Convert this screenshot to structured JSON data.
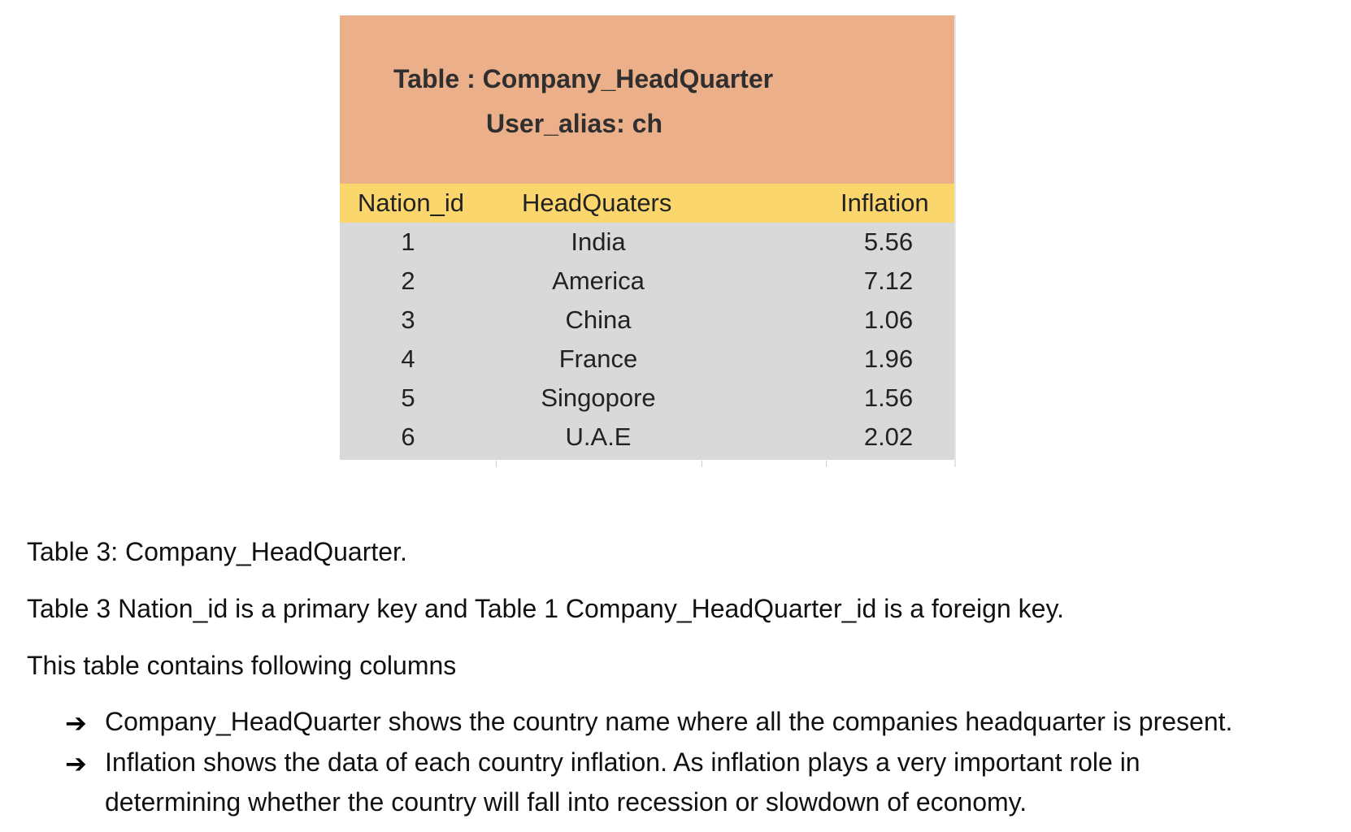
{
  "sheet": {
    "title": "Table : Company_HeadQuarter",
    "alias": "User_alias: ch",
    "columns": [
      "Nation_id",
      "HeadQuaters",
      "Inflation"
    ],
    "rows": [
      {
        "nation_id": "1",
        "headquarters": "India",
        "inflation": "5.56"
      },
      {
        "nation_id": "2",
        "headquarters": "America",
        "inflation": "7.12"
      },
      {
        "nation_id": "3",
        "headquarters": "China",
        "inflation": "1.06"
      },
      {
        "nation_id": "4",
        "headquarters": "France",
        "inflation": "1.96"
      },
      {
        "nation_id": "5",
        "headquarters": "Singopore",
        "inflation": "1.56"
      },
      {
        "nation_id": "6",
        "headquarters": "U.A.E",
        "inflation": "2.02"
      }
    ],
    "colors": {
      "title_band": "#ebb08a",
      "header_band": "#fbd66d",
      "body_band": "#d9d9d9"
    }
  },
  "document": {
    "caption": "Table 3: Company_HeadQuarter.",
    "key_note": "Table 3 Nation_id is a primary key and Table 1 Company_HeadQuarter_id is a foreign key.",
    "intro": "This table contains following columns",
    "bullet_icon": "arrow-right-icon",
    "bullets": [
      {
        "lines": [
          "Company_HeadQuarter shows the country name where all the companies headquarter is present."
        ]
      },
      {
        "lines": [
          "Inflation shows the data of each country inflation. As inflation plays a very important role in",
          "determining whether the country will fall into recession or slowdown of economy."
        ]
      }
    ]
  }
}
